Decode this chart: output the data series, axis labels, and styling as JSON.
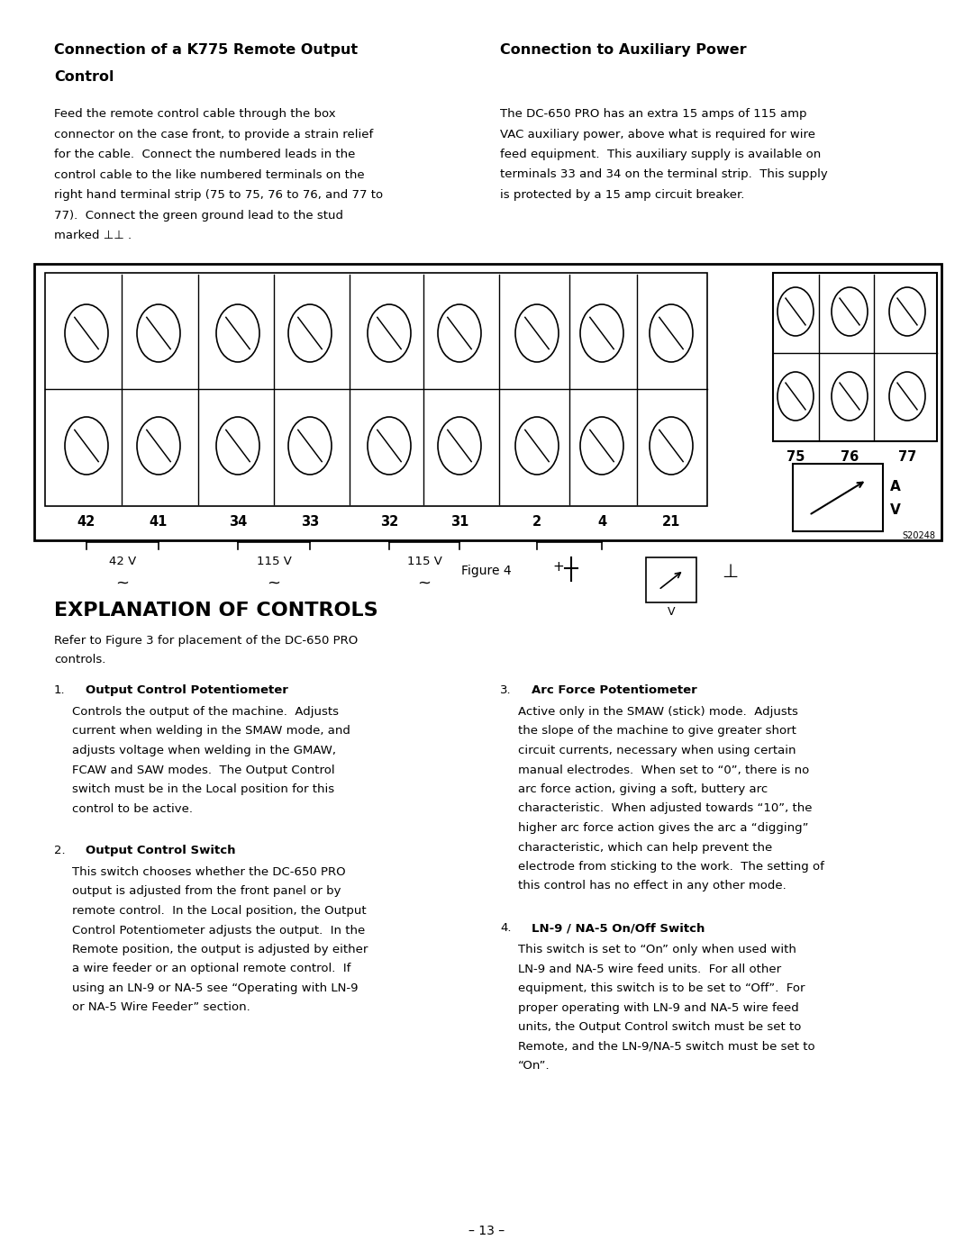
{
  "page_width": 10.8,
  "page_height": 13.97,
  "bg_color": "#ffffff",
  "heading1_line1": "Connection of a K775 Remote Output",
  "heading1_line2": "Control",
  "heading2": "Connection to Auxiliary Power",
  "para1_lines": [
    "Feed the remote control cable through the box",
    "connector on the case front, to provide a strain relief",
    "for the cable.  Connect the numbered leads in the",
    "control cable to the like numbered terminals on the",
    "right hand terminal strip (75 to 75, 76 to 76, and 77 to",
    "77).  Connect the green ground lead to the stud",
    "marked ⊥⊥ ."
  ],
  "para2_lines": [
    "The DC-650 PRO has an extra 15 amps of 115 amp",
    "VAC auxiliary power, above what is required for wire",
    "feed equipment.  This auxiliary supply is available on",
    "terminals 33 and 34 on the terminal strip.  This supply",
    "is protected by a 15 amp circuit breaker."
  ],
  "figure_caption": "Figure 4",
  "section_title": "EXPLANATION OF CONTROLS",
  "section_subtitle_lines": [
    "Refer to Figure 3 for placement of the DC-650 PRO",
    "controls."
  ],
  "item1_title": "Output Control Potentiometer",
  "item1_body_lines": [
    "Controls the output of the machine.  Adjusts",
    "current when welding in the SMAW mode, and",
    "adjusts voltage when welding in the GMAW,",
    "FCAW and SAW modes.  The Output Control",
    "switch must be in the Local position for this",
    "control to be active."
  ],
  "item2_title": "Output Control Switch",
  "item2_body_lines": [
    "This switch chooses whether the DC-650 PRO",
    "output is adjusted from the front panel or by",
    "remote control.  In the Local position, the Output",
    "Control Potentiometer adjusts the output.  In the",
    "Remote position, the output is adjusted by either",
    "a wire feeder or an optional remote control.  If",
    "using an LN-9 or NA-5 see “Operating with LN-9",
    "or NA-5 Wire Feeder” section."
  ],
  "item3_title": "Arc Force Potentiometer",
  "item3_body_lines": [
    "Active only in the SMAW (stick) mode.  Adjusts",
    "the slope of the machine to give greater short",
    "circuit currents, necessary when using certain",
    "manual electrodes.  When set to “0”, there is no",
    "arc force action, giving a soft, buttery arc",
    "characteristic.  When adjusted towards “10”, the",
    "higher arc force action gives the arc a “digging”",
    "characteristic, which can help prevent the",
    "electrode from sticking to the work.  The setting of",
    "this control has no effect in any other mode."
  ],
  "item4_title": "LN-9 / NA-5 On/Off Switch",
  "item4_body_lines": [
    "This switch is set to “On” only when used with",
    "LN-9 and NA-5 wire feed units.  For all other",
    "equipment, this switch is to be set to “Off”.  For",
    "proper operating with LN-9 and NA-5 wire feed",
    "units, the Output Control switch must be set to",
    "Remote, and the LN-9/NA-5 switch must be set to",
    "“On”."
  ],
  "page_number": "– 13 –",
  "diagram_code": "S20248"
}
